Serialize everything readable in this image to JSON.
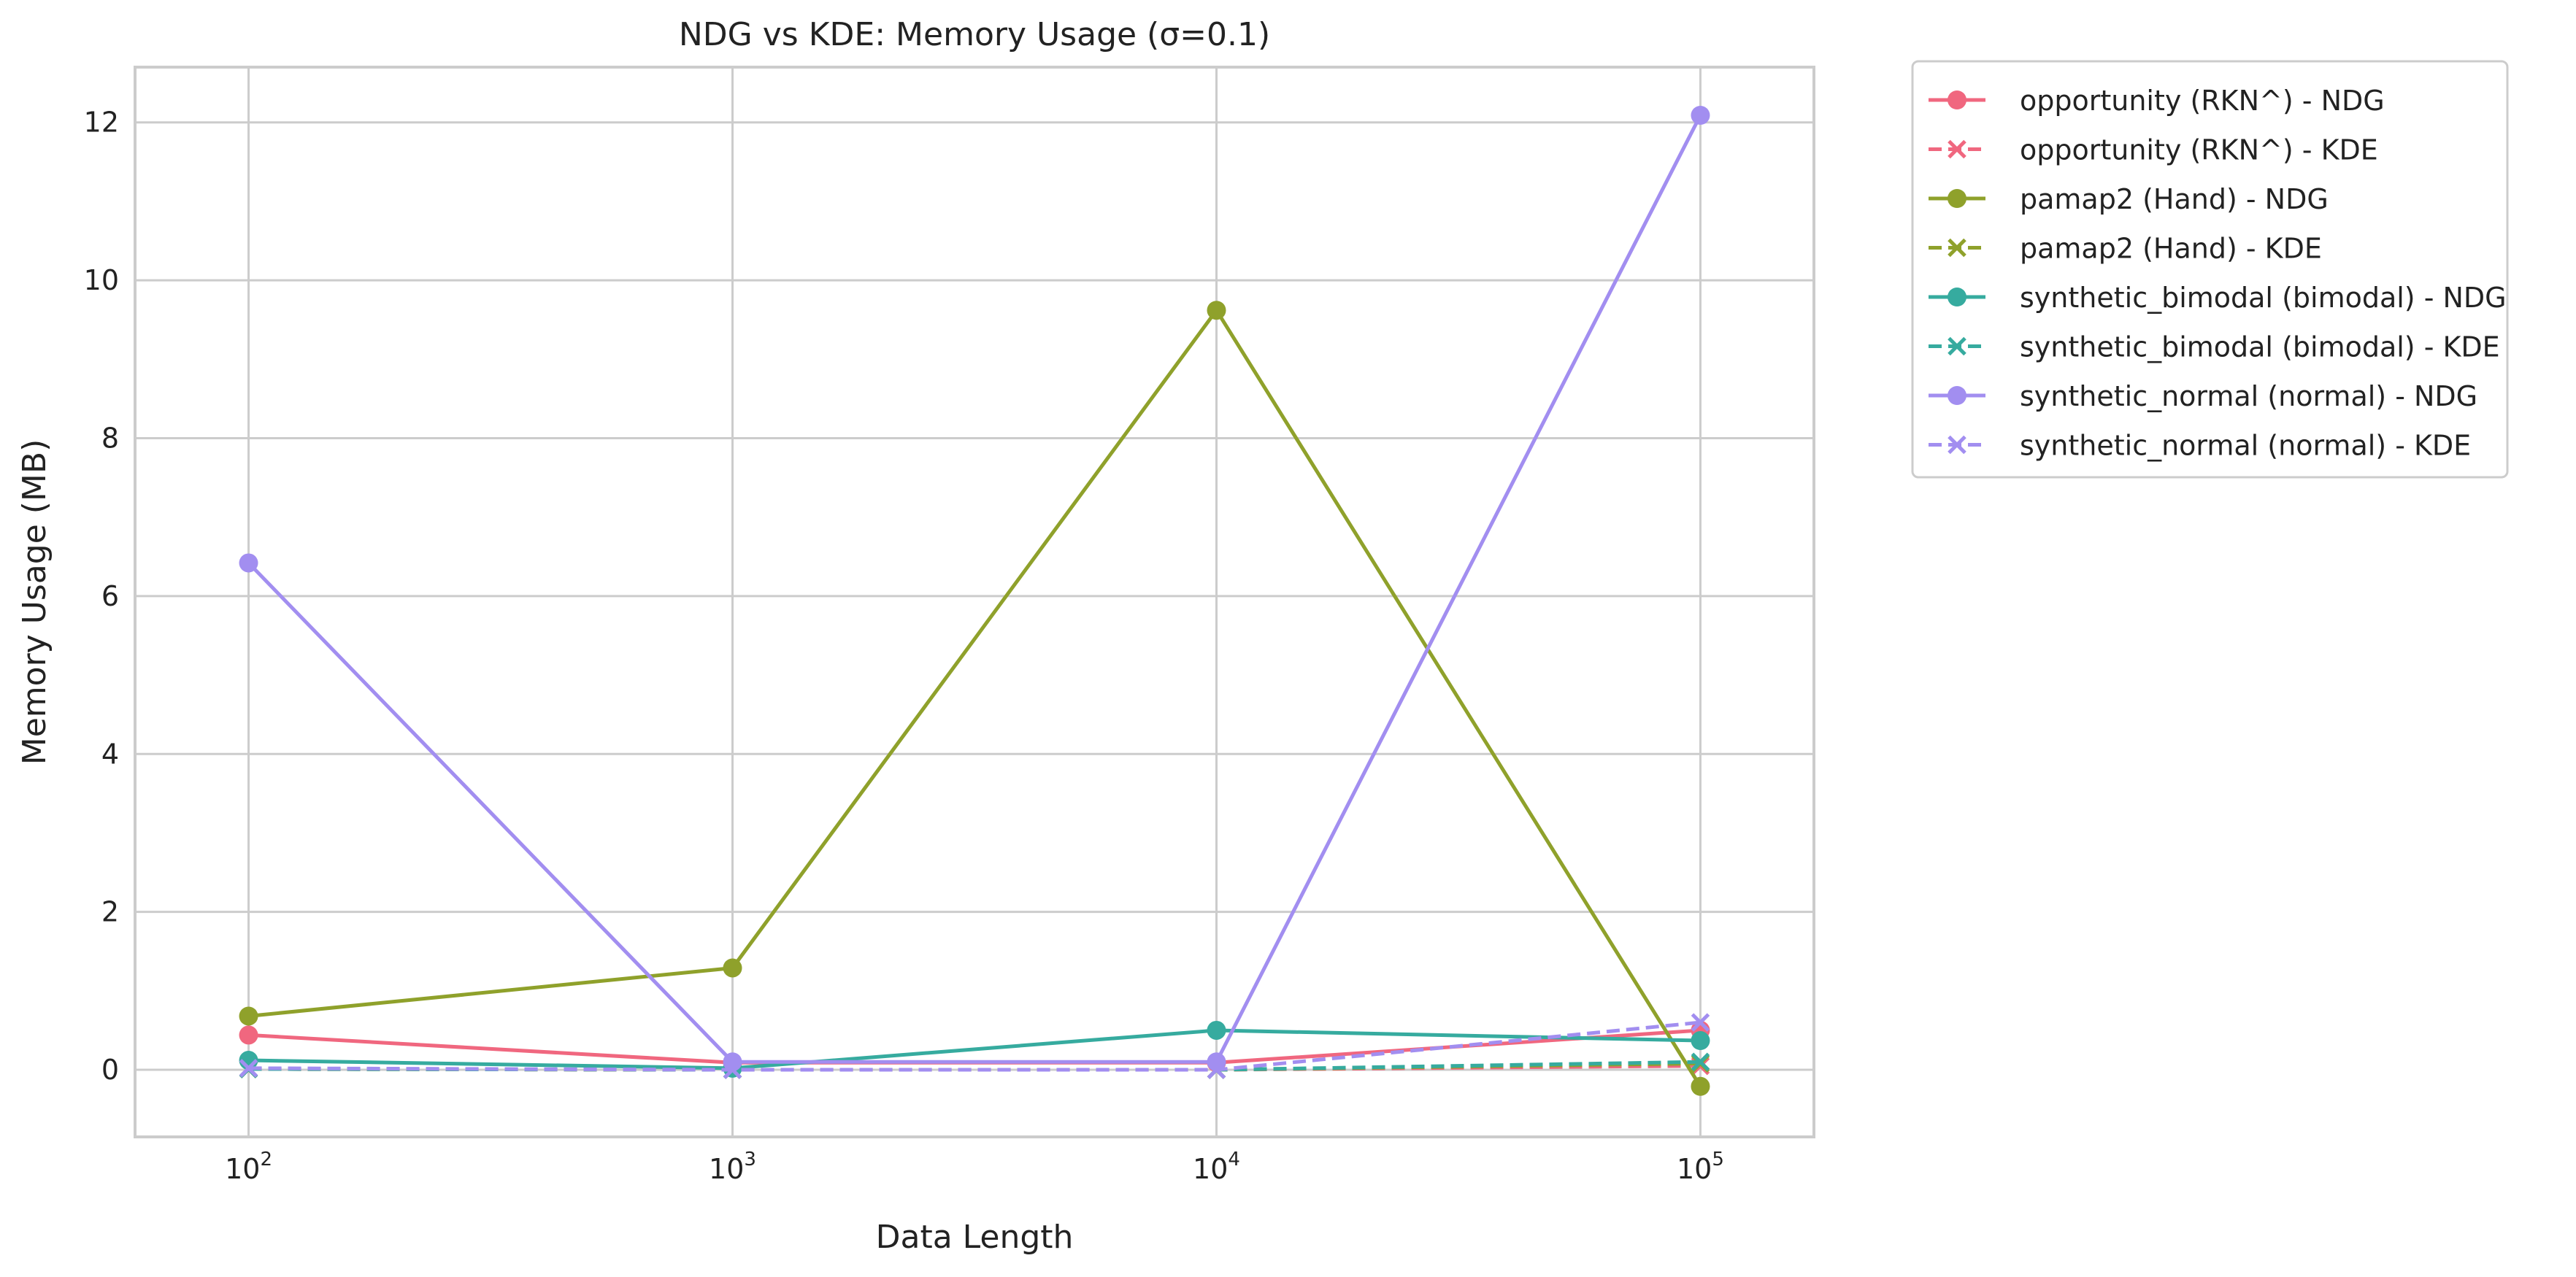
{
  "chart_data": {
    "type": "line",
    "title": "NDG vs KDE: Memory Usage (σ=0.1)",
    "xlabel": "Data Length",
    "ylabel": "Memory Usage (MB)",
    "x_scale": "log",
    "x": [
      100,
      1000,
      10000,
      100000
    ],
    "x_tick_labels": [
      {
        "base": "10",
        "exp": "2"
      },
      {
        "base": "10",
        "exp": "3"
      },
      {
        "base": "10",
        "exp": "4"
      },
      {
        "base": "10",
        "exp": "5"
      }
    ],
    "ylim": [
      -0.85,
      12.7
    ],
    "y_ticks": [
      0,
      2,
      4,
      6,
      8,
      10,
      12
    ],
    "grid": true,
    "legend_position": "outside-top-right",
    "series": [
      {
        "name": "opportunity (RKN^) - NDG",
        "color": "#f0677f",
        "style": "solid",
        "marker": "circle",
        "values": [
          0.44,
          0.09,
          0.09,
          0.5
        ]
      },
      {
        "name": "opportunity (RKN^) - KDE",
        "color": "#f0677f",
        "style": "dashed",
        "marker": "x",
        "values": [
          0.01,
          0.0,
          0.0,
          0.05
        ]
      },
      {
        "name": "pamap2 (Hand) - NDG",
        "color": "#8fa12b",
        "style": "solid",
        "marker": "circle",
        "values": [
          0.68,
          1.29,
          9.62,
          -0.21
        ]
      },
      {
        "name": "pamap2 (Hand) - KDE",
        "color": "#8fa12b",
        "style": "dashed",
        "marker": "x",
        "values": [
          0.01,
          0.0,
          0.0,
          0.08
        ]
      },
      {
        "name": "synthetic_bimodal (bimodal) - NDG",
        "color": "#36ab9f",
        "style": "solid",
        "marker": "circle",
        "values": [
          0.12,
          0.02,
          0.5,
          0.37
        ]
      },
      {
        "name": "synthetic_bimodal (bimodal) - KDE",
        "color": "#36ab9f",
        "style": "dashed",
        "marker": "x",
        "values": [
          0.01,
          0.0,
          0.0,
          0.1
        ]
      },
      {
        "name": "synthetic_normal (normal) - NDG",
        "color": "#a28ef0",
        "style": "solid",
        "marker": "circle",
        "values": [
          6.42,
          0.1,
          0.1,
          12.09
        ]
      },
      {
        "name": "synthetic_normal (normal) - KDE",
        "color": "#a28ef0",
        "style": "dashed",
        "marker": "x",
        "values": [
          0.02,
          0.0,
          0.0,
          0.6
        ]
      }
    ]
  }
}
